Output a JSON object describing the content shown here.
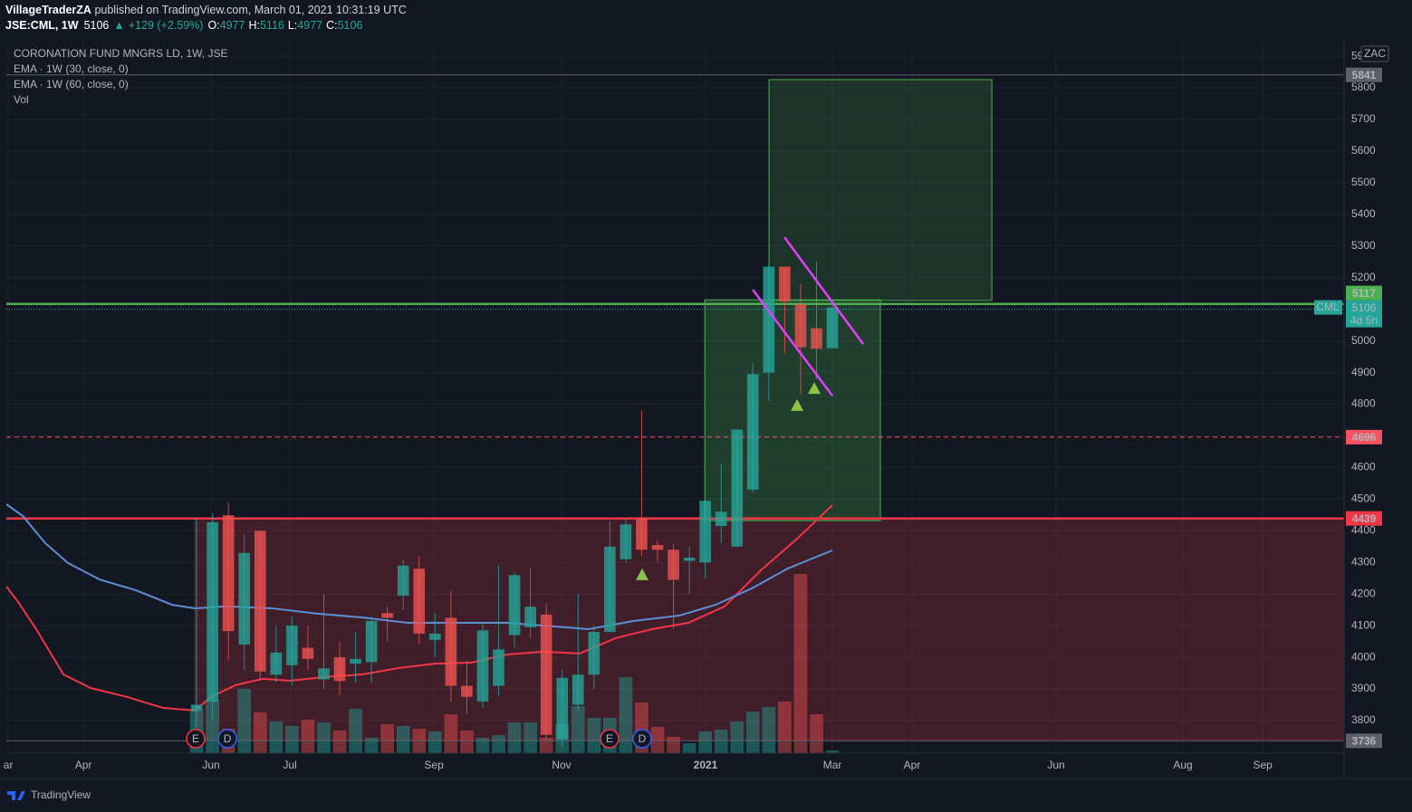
{
  "header": {
    "author": "VillageTraderZA",
    "published": "published on TradingView.com, March 01, 2021 10:31:19 UTC",
    "symbol": "JSE:CML, 1W",
    "last": 5106,
    "arrow": "▲",
    "change": "+129 (+2.59%)",
    "ohlc": [
      {
        "label": "O:",
        "value": 4977
      },
      {
        "label": "H:",
        "value": 5116
      },
      {
        "label": "L:",
        "value": 4977
      },
      {
        "label": "C:",
        "value": 5106
      }
    ]
  },
  "chart_data": {
    "type": "candlestick",
    "title": "CORONATION FUND MNGRS LD, 1W, JSE",
    "currency": "ZAC",
    "up_color": "#26a69a",
    "down_color": "#ef5350",
    "grid": true,
    "xlim": [
      -11.97,
      72.19
    ],
    "xticks": [
      {
        "value": -11.85,
        "label": "ar"
      },
      {
        "value": -7.12,
        "label": "Apr"
      },
      {
        "value": 0.91,
        "label": "Jun"
      },
      {
        "value": 5.87,
        "label": "Jul"
      },
      {
        "value": 14.93,
        "label": "Sep"
      },
      {
        "value": 22.96,
        "label": "Nov"
      },
      {
        "value": 32.02,
        "label": "2021"
      },
      {
        "value": 40,
        "label": "Mar"
      },
      {
        "value": 45.01,
        "label": "Apr"
      },
      {
        "value": 54.07,
        "label": "Jun"
      },
      {
        "value": 62.05,
        "label": "Aug"
      },
      {
        "value": 67.07,
        "label": "Sep"
      }
    ],
    "ylim": [
      3697,
      5949
    ],
    "yticks": [
      3800,
      3900,
      4000,
      4100,
      4200,
      4300,
      4400,
      4500,
      4600,
      4700,
      4800,
      4900,
      5000,
      5100,
      5200,
      5300,
      5400,
      5500,
      5600,
      5700,
      5800,
      5900
    ],
    "candles": [
      {
        "open": 3830,
        "high": 4440,
        "low": 3780,
        "close": 3850
      },
      {
        "open": 3860,
        "high": 4455,
        "low": 3800,
        "close": 4427
      },
      {
        "open": 4449,
        "high": 4490,
        "low": 3990,
        "close": 4083
      },
      {
        "open": 4040,
        "high": 4390,
        "low": 3960,
        "close": 4330
      },
      {
        "open": 4400,
        "high": 4400,
        "low": 3930,
        "close": 3955
      },
      {
        "open": 3945,
        "high": 4100,
        "low": 3920,
        "close": 4015
      },
      {
        "open": 3975,
        "high": 4130,
        "low": 3910,
        "close": 4100
      },
      {
        "open": 4030,
        "high": 4100,
        "low": 3960,
        "close": 3995
      },
      {
        "open": 3930,
        "high": 4200,
        "low": 3900,
        "close": 3965
      },
      {
        "open": 4000,
        "high": 4050,
        "low": 3880,
        "close": 3925
      },
      {
        "open": 3980,
        "high": 4080,
        "low": 3920,
        "close": 3995
      },
      {
        "open": 3985,
        "high": 4130,
        "low": 3920,
        "close": 4115
      },
      {
        "open": 4140,
        "high": 4160,
        "low": 4050,
        "close": 4125
      },
      {
        "open": 4195,
        "high": 4310,
        "low": 4150,
        "close": 4290
      },
      {
        "open": 4280,
        "high": 4320,
        "low": 4040,
        "close": 4075
      },
      {
        "open": 4055,
        "high": 4140,
        "low": 4000,
        "close": 4075
      },
      {
        "open": 4125,
        "high": 4210,
        "low": 3860,
        "close": 3910
      },
      {
        "open": 3910,
        "high": 3990,
        "low": 3820,
        "close": 3875
      },
      {
        "open": 3860,
        "high": 4110,
        "low": 3840,
        "close": 4085
      },
      {
        "open": 3910,
        "high": 4290,
        "low": 3880,
        "close": 4025
      },
      {
        "open": 4070,
        "high": 4270,
        "low": 4030,
        "close": 4260
      },
      {
        "open": 4095,
        "high": 4280,
        "low": 4060,
        "close": 4160
      },
      {
        "open": 4135,
        "high": 4170,
        "low": 3740,
        "close": 3755
      },
      {
        "open": 3740,
        "high": 3960,
        "low": 3720,
        "close": 3935
      },
      {
        "open": 3850,
        "high": 4200,
        "low": 3830,
        "close": 3945
      },
      {
        "open": 3945,
        "high": 4100,
        "low": 3900,
        "close": 4080
      },
      {
        "open": 4080,
        "high": 4430,
        "low": 4080,
        "close": 4350
      },
      {
        "open": 4310,
        "high": 4440,
        "low": 4300,
        "close": 4420
      },
      {
        "open": 4440,
        "high": 4780,
        "low": 4320,
        "close": 4340
      },
      {
        "open": 4355,
        "high": 4370,
        "low": 4300,
        "close": 4340
      },
      {
        "open": 4340,
        "high": 4360,
        "low": 4090,
        "close": 4245
      },
      {
        "open": 4305,
        "high": 4350,
        "low": 4200,
        "close": 4315
      },
      {
        "open": 4300,
        "high": 4500,
        "low": 4250,
        "close": 4495
      },
      {
        "open": 4415,
        "high": 4610,
        "low": 4360,
        "close": 4460
      },
      {
        "open": 4350,
        "high": 4720,
        "low": 4350,
        "close": 4720
      },
      {
        "open": 4530,
        "high": 4930,
        "low": 4520,
        "close": 4895
      },
      {
        "open": 4900,
        "high": 5240,
        "low": 4810,
        "close": 5235
      },
      {
        "open": 5235,
        "high": 5235,
        "low": 4960,
        "close": 5125
      },
      {
        "open": 5115,
        "high": 5180,
        "low": 4830,
        "close": 4980
      },
      {
        "open": 5040,
        "high": 5250,
        "low": 4880,
        "close": 4975
      },
      {
        "open": 4977,
        "high": 5116,
        "low": 4977,
        "close": 5106
      }
    ],
    "volume": {
      "name": "Vol",
      "vlim": [
        0,
        787
      ],
      "values": [
        47,
        59,
        27,
        71,
        45,
        35,
        30,
        37,
        34,
        25,
        49,
        17,
        32,
        30,
        27,
        24,
        43,
        25,
        17,
        20,
        34,
        34,
        17,
        32,
        52,
        39,
        39,
        84,
        56,
        29,
        18,
        11,
        24,
        26,
        35,
        46,
        51,
        57,
        198,
        43,
        3
      ]
    },
    "series": [
      {
        "name": "EMA · 1W (30, close, 0)",
        "color": "#f23645",
        "x": [
          -11.97,
          -11.23,
          -10.09,
          -8.38,
          -6.67,
          -4.39,
          -2.11,
          -0.11,
          0.91,
          2.45,
          4.16,
          5.87,
          8.15,
          10.43,
          12.71,
          14.99,
          17.26,
          19.54,
          21.82,
          24.1,
          26.38,
          28.66,
          30.94,
          33.22,
          35.5,
          37.78,
          40
        ],
        "values": [
          4224,
          4175,
          4089,
          3946,
          3903,
          3875,
          3840,
          3832,
          3875,
          3912,
          3932,
          3926,
          3938,
          3946,
          3966,
          3980,
          3983,
          4009,
          4018,
          4012,
          4061,
          4089,
          4109,
          4161,
          4275,
          4375,
          4481
        ]
      },
      {
        "name": "EMA · 1W (60, close, 0)",
        "color": "#5b8fd6",
        "x": [
          -11.97,
          -10.94,
          -9.52,
          -8.09,
          -6.1,
          -3.82,
          -1.54,
          -0.11,
          1.88,
          4.73,
          7.58,
          10.43,
          13.28,
          16.13,
          19.54,
          22.39,
          24.67,
          27.52,
          30.37,
          32.65,
          34.93,
          37.21,
          40
        ],
        "values": [
          4484,
          4447,
          4361,
          4298,
          4246,
          4212,
          4166,
          4155,
          4161,
          4155,
          4138,
          4126,
          4109,
          4109,
          4109,
          4098,
          4089,
          4115,
          4132,
          4166,
          4218,
          4281,
          4338
        ]
      }
    ],
    "zones": [
      {
        "x": [
          -0.11,
          72.19
        ],
        "y": [
          3740,
          4438
        ],
        "fill": "rgba(242,54,69,0.2)",
        "stroke": "rgba(242,54,69,0.35)"
      },
      {
        "x": [
          36.01,
          50.03
        ],
        "y": [
          5128,
          5826
        ],
        "fill": "rgba(76,175,80,0.18)",
        "stroke": "#4caf50"
      },
      {
        "x": [
          31.97,
          43.02
        ],
        "y": [
          4432,
          5130
        ],
        "fill": "rgba(76,175,80,0.25)",
        "stroke": "#4caf50"
      }
    ],
    "levels": [
      {
        "value": 5841,
        "color": "#5d606b",
        "style": "solid"
      },
      {
        "value": 5117,
        "color": "#4caf50",
        "style": "solid"
      },
      {
        "value": 4696,
        "color": "#f7525f",
        "style": "dashed"
      },
      {
        "value": 4439,
        "color": "#f23645",
        "style": "solid"
      },
      {
        "value": 3736,
        "color": "#5d606b",
        "style": "solid"
      }
    ],
    "current": {
      "value": 5106,
      "symbol": "CML",
      "countdown": "4d 5h",
      "color": "#26a69a"
    },
    "trendlines": {
      "color": "#e040fb",
      "lines": [
        {
          "x": [
            34.99,
            40
          ],
          "y": [
            5162,
            4827
          ]
        },
        {
          "x": [
            36.98,
            41.94
          ],
          "y": [
            5328,
            4990
          ]
        }
      ]
    },
    "markers": {
      "color": "#8bc34a",
      "points": [
        {
          "x": 28.03,
          "y": 4261
        },
        {
          "x": 37.78,
          "y": 4796
        },
        {
          "x": 38.86,
          "y": 4850
        }
      ]
    },
    "events": [
      {
        "x": -0.06,
        "label": "E",
        "color": "#f23645"
      },
      {
        "x": 1.94,
        "label": "D",
        "color": "#2962ff"
      },
      {
        "x": 25.98,
        "label": "E",
        "color": "#f23645"
      },
      {
        "x": 28.03,
        "label": "D",
        "color": "#2962ff"
      }
    ]
  },
  "footer": "TradingView"
}
